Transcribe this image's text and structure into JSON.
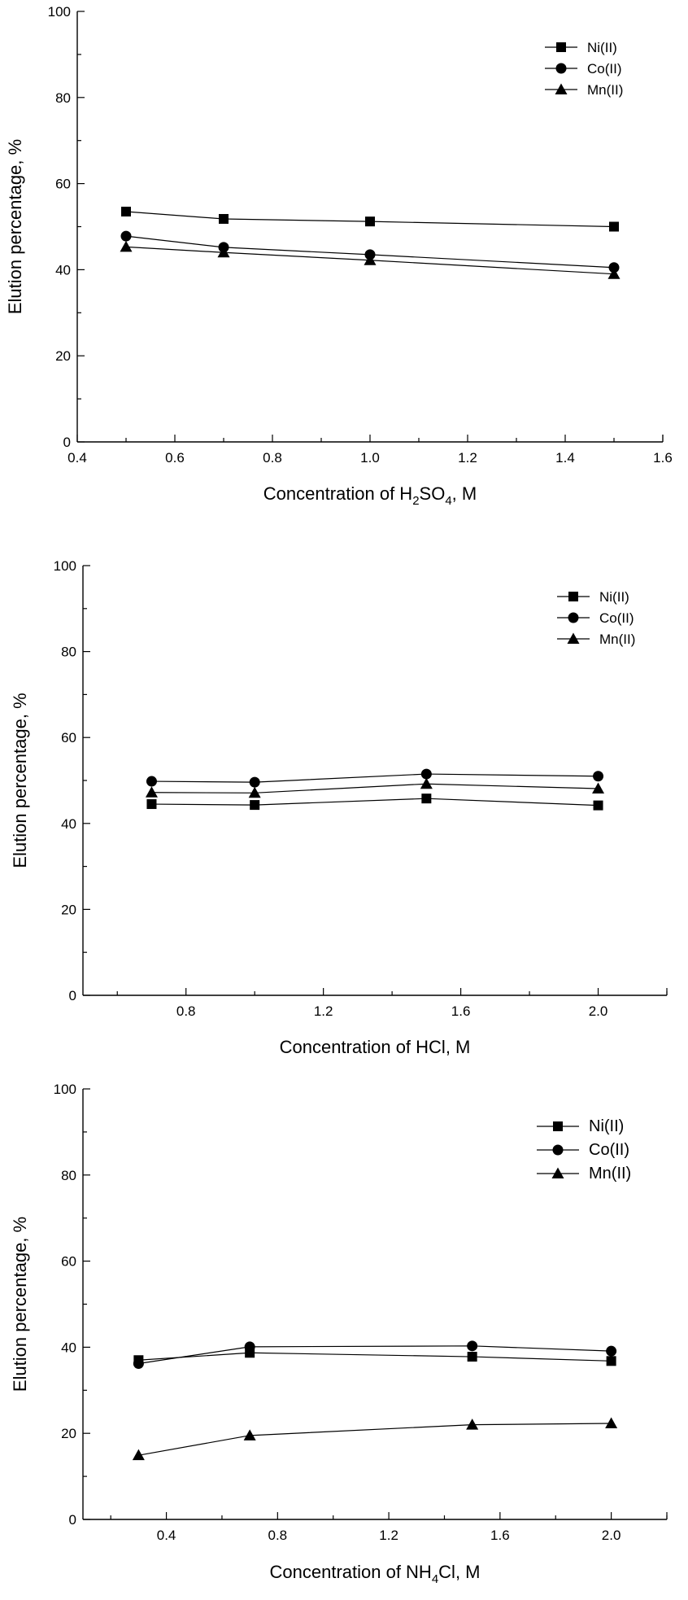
{
  "chart_data": [
    {
      "type": "line",
      "xlabel": {
        "prefix": "Concentration of H",
        "sub1": "2",
        "mid": "SO",
        "sub2": "4",
        "suffix": ", M"
      },
      "ylabel": "Elution percentage, %",
      "xlim": [
        0.4,
        1.6
      ],
      "ylim": [
        0,
        100
      ],
      "xticks": [
        0.4,
        0.6,
        0.8,
        1.0,
        1.2,
        1.4,
        1.6
      ],
      "xtick_labels": [
        "0.4",
        "0.6",
        "0.8",
        "1.0",
        "1.2",
        "1.4",
        "1.6"
      ],
      "yticks": [
        0,
        20,
        40,
        60,
        80,
        100
      ],
      "ytick_labels": [
        "0",
        "20",
        "40",
        "60",
        "80",
        "100"
      ],
      "legend_position": "top-right",
      "series": [
        {
          "name": "Ni(II)",
          "marker": "square",
          "x": [
            0.5,
            0.7,
            1.0,
            1.5
          ],
          "values": [
            53.5,
            51.8,
            51.2,
            50.0
          ]
        },
        {
          "name": "Co(II)",
          "marker": "circle",
          "x": [
            0.5,
            0.7,
            1.0,
            1.5
          ],
          "values": [
            47.8,
            45.2,
            43.5,
            40.5
          ]
        },
        {
          "name": "Mn(II)",
          "marker": "triangle",
          "x": [
            0.5,
            0.7,
            1.0,
            1.5
          ],
          "values": [
            45.3,
            44.0,
            42.2,
            39.0
          ]
        }
      ]
    },
    {
      "type": "line",
      "xlabel": {
        "text": "Concentration of HCl, M"
      },
      "ylabel": "Elution percentage, %",
      "xlim": [
        0.5,
        2.2
      ],
      "ylim": [
        0,
        100
      ],
      "xticks": [
        0.8,
        1.2,
        1.6,
        2.0
      ],
      "xtick_labels": [
        "0.8",
        "1.2",
        "1.6",
        "2.0"
      ],
      "yticks": [
        0,
        20,
        40,
        60,
        80,
        100
      ],
      "ytick_labels": [
        "0",
        "20",
        "40",
        "60",
        "80",
        "100"
      ],
      "legend_position": "top-right",
      "series": [
        {
          "name": "Ni(II)",
          "marker": "square",
          "x": [
            0.7,
            1.0,
            1.5,
            2.0
          ],
          "values": [
            44.5,
            44.3,
            45.8,
            44.2
          ]
        },
        {
          "name": "Co(II)",
          "marker": "circle",
          "x": [
            0.7,
            1.0,
            1.5,
            2.0
          ],
          "values": [
            49.8,
            49.6,
            51.5,
            51.0
          ]
        },
        {
          "name": "Mn(II)",
          "marker": "triangle",
          "x": [
            0.7,
            1.0,
            1.5,
            2.0
          ],
          "values": [
            47.2,
            47.1,
            49.2,
            48.1
          ]
        }
      ]
    },
    {
      "type": "line",
      "xlabel": {
        "prefix": "Concentration of NH",
        "sub1": "4",
        "suffix": "Cl, M"
      },
      "ylabel": "Elution percentage, %",
      "xlim": [
        0.1,
        2.2
      ],
      "ylim": [
        0,
        100
      ],
      "xticks": [
        0.4,
        0.8,
        1.2,
        1.6,
        2.0
      ],
      "xtick_labels": [
        "0.4",
        "0.8",
        "1.2",
        "1.6",
        "2.0"
      ],
      "yticks": [
        0,
        20,
        40,
        60,
        80,
        100
      ],
      "ytick_labels": [
        "0",
        "20",
        "40",
        "60",
        "80",
        "100"
      ],
      "legend_position": "top-right",
      "series": [
        {
          "name": "Ni(II)",
          "marker": "square",
          "x": [
            0.3,
            0.7,
            1.5,
            2.0
          ],
          "values": [
            37.0,
            38.7,
            37.8,
            36.8
          ]
        },
        {
          "name": "Co(II)",
          "marker": "circle",
          "x": [
            0.3,
            0.7,
            1.5,
            2.0
          ],
          "values": [
            36.2,
            40.1,
            40.3,
            39.1
          ]
        },
        {
          "name": "Mn(II)",
          "marker": "triangle",
          "x": [
            0.3,
            0.7,
            1.5,
            2.0
          ],
          "values": [
            14.9,
            19.5,
            22.0,
            22.3
          ]
        }
      ]
    }
  ]
}
